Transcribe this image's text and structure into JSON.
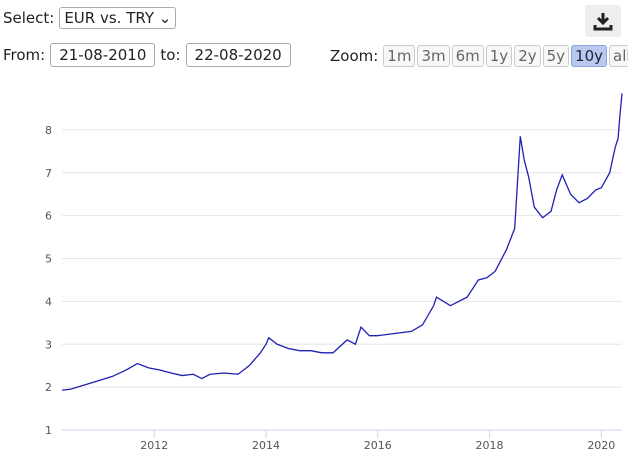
{
  "controls": {
    "select_label": "Select:",
    "select_value": "EUR vs. TRY",
    "from_label": "From:",
    "from_value": "21-08-2010",
    "to_label": "to:",
    "to_value": "22-08-2020",
    "zoom_label": "Zoom:",
    "zoom_options": [
      "1m",
      "3m",
      "6m",
      "1y",
      "2y",
      "5y",
      "10y",
      "all"
    ],
    "zoom_active": "10y"
  },
  "chart_data": {
    "type": "line",
    "color": "#1f1fb4",
    "grid": true,
    "x": [
      2010.35,
      2010.5,
      2010.75,
      2011.0,
      2011.25,
      2011.5,
      2011.7,
      2011.9,
      2012.1,
      2012.3,
      2012.5,
      2012.7,
      2012.85,
      2013.0,
      2013.25,
      2013.5,
      2013.7,
      2013.9,
      2014.0,
      2014.05,
      2014.2,
      2014.4,
      2014.6,
      2014.8,
      2015.0,
      2015.2,
      2015.45,
      2015.6,
      2015.7,
      2015.85,
      2016.0,
      2016.3,
      2016.6,
      2016.8,
      2017.0,
      2017.05,
      2017.3,
      2017.6,
      2017.8,
      2017.95,
      2018.1,
      2018.3,
      2018.45,
      2018.55,
      2018.62,
      2018.7,
      2018.8,
      2018.95,
      2019.1,
      2019.2,
      2019.3,
      2019.45,
      2019.6,
      2019.75,
      2019.9,
      2020.0,
      2020.15,
      2020.25,
      2020.3,
      2020.33,
      2020.37
    ],
    "values": [
      1.93,
      1.95,
      2.05,
      2.15,
      2.25,
      2.4,
      2.55,
      2.45,
      2.4,
      2.33,
      2.27,
      2.3,
      2.2,
      2.3,
      2.33,
      2.3,
      2.5,
      2.8,
      3.0,
      3.15,
      3.0,
      2.9,
      2.85,
      2.85,
      2.8,
      2.8,
      3.1,
      3.0,
      3.4,
      3.2,
      3.2,
      3.25,
      3.3,
      3.45,
      3.9,
      4.1,
      3.9,
      4.1,
      4.5,
      4.55,
      4.7,
      5.2,
      5.7,
      7.85,
      7.3,
      6.9,
      6.2,
      5.95,
      6.1,
      6.6,
      6.95,
      6.5,
      6.3,
      6.4,
      6.6,
      6.65,
      7.0,
      7.6,
      7.8,
      8.3,
      8.85
    ],
    "xlim": [
      2010.35,
      2020.37
    ],
    "xticks": [
      2012,
      2014,
      2016,
      2018,
      2020
    ],
    "ylim": [
      1,
      9
    ],
    "yticks": [
      1,
      2,
      3,
      4,
      5,
      6,
      7,
      8
    ]
  }
}
